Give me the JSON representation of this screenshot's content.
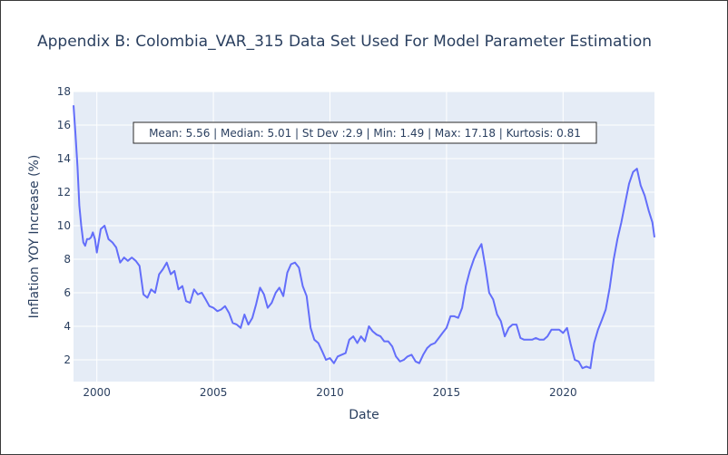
{
  "chart_data": {
    "type": "line",
    "title": "Appendix B: Colombia_VAR_315 Data Set Used For Model Parameter Estimation",
    "xlabel": "Date",
    "ylabel": "Inflation YOY Increase (%)",
    "xlim": [
      1999.0,
      2023.92
    ],
    "ylim": [
      0.7,
      18
    ],
    "x_ticks": [
      2000,
      2005,
      2010,
      2015,
      2020
    ],
    "y_ticks": [
      2,
      4,
      6,
      8,
      10,
      12,
      14,
      16,
      18
    ],
    "grid": true,
    "line_color": "#636efa",
    "plot_bg": "#e5ecf6",
    "annotation": "Mean: 5.56 | Median: 5.01 | St Dev :2.9 | Min: 1.49 | Max: 17.18 | Kurtosis: 0.81",
    "series": [
      {
        "x": [
          1999.0,
          1999.08,
          1999.17,
          1999.25,
          1999.33,
          1999.42,
          1999.5,
          1999.58,
          1999.67,
          1999.75,
          1999.83,
          1999.92,
          2000.0,
          2000.17,
          2000.33,
          2000.5,
          2000.67,
          2000.83,
          2001.0,
          2001.17,
          2001.33,
          2001.5,
          2001.67,
          2001.83,
          2002.0,
          2002.17,
          2002.33,
          2002.5,
          2002.67,
          2002.83,
          2003.0,
          2003.17,
          2003.33,
          2003.5,
          2003.67,
          2003.83,
          2004.0,
          2004.17,
          2004.33,
          2004.5,
          2004.67,
          2004.83,
          2005.0,
          2005.17,
          2005.33,
          2005.5,
          2005.67,
          2005.83,
          2006.0,
          2006.17,
          2006.33,
          2006.5,
          2006.67,
          2006.83,
          2007.0,
          2007.17,
          2007.33,
          2007.5,
          2007.67,
          2007.83,
          2008.0,
          2008.17,
          2008.33,
          2008.5,
          2008.67,
          2008.83,
          2009.0,
          2009.17,
          2009.33,
          2009.5,
          2009.67,
          2009.83,
          2010.0,
          2010.17,
          2010.33,
          2010.5,
          2010.67,
          2010.83,
          2011.0,
          2011.17,
          2011.33,
          2011.5,
          2011.67,
          2011.83,
          2012.0,
          2012.17,
          2012.33,
          2012.5,
          2012.67,
          2012.83,
          2013.0,
          2013.17,
          2013.33,
          2013.5,
          2013.67,
          2013.83,
          2014.0,
          2014.17,
          2014.33,
          2014.5,
          2014.67,
          2014.83,
          2015.0,
          2015.17,
          2015.33,
          2015.5,
          2015.67,
          2015.83,
          2016.0,
          2016.17,
          2016.33,
          2016.5,
          2016.67,
          2016.83,
          2017.0,
          2017.17,
          2017.33,
          2017.5,
          2017.67,
          2017.83,
          2018.0,
          2018.17,
          2018.33,
          2018.5,
          2018.67,
          2018.83,
          2019.0,
          2019.17,
          2019.33,
          2019.5,
          2019.67,
          2019.83,
          2020.0,
          2020.17,
          2020.33,
          2020.5,
          2020.67,
          2020.83,
          2021.0,
          2021.17,
          2021.33,
          2021.5,
          2021.67,
          2021.83,
          2022.0,
          2022.17,
          2022.33,
          2022.5,
          2022.67,
          2022.83,
          2023.0,
          2023.17,
          2023.33,
          2023.5,
          2023.67,
          2023.83,
          2023.92
        ],
        "values": [
          17.18,
          15.5,
          13.5,
          11.2,
          10.0,
          9.0,
          8.8,
          9.2,
          9.2,
          9.3,
          9.6,
          9.2,
          8.4,
          9.8,
          10.0,
          9.2,
          9.0,
          8.7,
          7.8,
          8.1,
          7.9,
          8.1,
          7.9,
          7.6,
          5.9,
          5.7,
          6.2,
          6.0,
          7.1,
          7.4,
          7.8,
          7.1,
          7.3,
          6.2,
          6.4,
          5.5,
          5.4,
          6.2,
          5.9,
          6.0,
          5.6,
          5.2,
          5.1,
          4.9,
          5.0,
          5.2,
          4.8,
          4.2,
          4.1,
          3.9,
          4.7,
          4.1,
          4.5,
          5.3,
          6.3,
          5.9,
          5.1,
          5.4,
          6.0,
          6.3,
          5.8,
          7.2,
          7.7,
          7.8,
          7.5,
          6.4,
          5.8,
          3.9,
          3.2,
          3.0,
          2.5,
          2.0,
          2.1,
          1.8,
          2.2,
          2.3,
          2.4,
          3.2,
          3.4,
          3.0,
          3.4,
          3.1,
          4.0,
          3.7,
          3.5,
          3.4,
          3.1,
          3.1,
          2.8,
          2.2,
          1.9,
          2.0,
          2.2,
          2.3,
          1.9,
          1.8,
          2.3,
          2.7,
          2.9,
          3.0,
          3.3,
          3.6,
          3.9,
          4.6,
          4.6,
          4.5,
          5.1,
          6.4,
          7.3,
          8.0,
          8.5,
          8.9,
          7.5,
          6.0,
          5.6,
          4.7,
          4.3,
          3.4,
          3.9,
          4.1,
          4.1,
          3.3,
          3.2,
          3.2,
          3.2,
          3.3,
          3.2,
          3.2,
          3.4,
          3.8,
          3.8,
          3.8,
          3.6,
          3.9,
          2.9,
          2.0,
          1.9,
          1.5,
          1.6,
          1.5,
          3.0,
          3.8,
          4.4,
          5.0,
          6.3,
          8.0,
          9.2,
          10.2,
          11.4,
          12.5,
          13.2,
          13.4,
          12.4,
          11.8,
          10.9,
          10.2,
          9.3
        ]
      }
    ]
  }
}
